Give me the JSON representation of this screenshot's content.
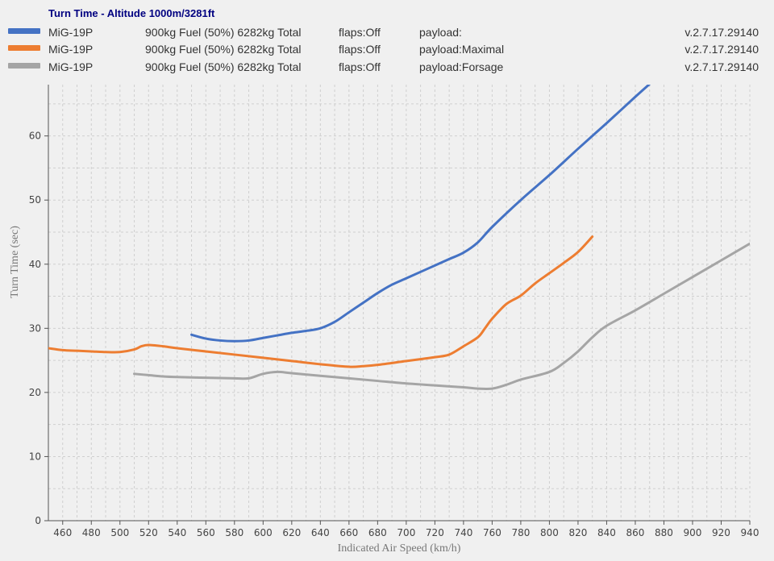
{
  "title": "Turn Time - Altitude 1000m/3281ft",
  "legend": [
    {
      "name": "MiG-19P",
      "fuel": "900kg Fuel (50%) 6282kg Total",
      "flaps": "flaps:Off",
      "payload": "payload:",
      "version": "v.2.7.17.29140",
      "color": "#4472c4"
    },
    {
      "name": "MiG-19P",
      "fuel": "900kg Fuel (50%) 6282kg Total",
      "flaps": "flaps:Off",
      "payload": "payload:Maximal",
      "version": "v.2.7.17.29140",
      "color": "#ed7d31"
    },
    {
      "name": "MiG-19P",
      "fuel": "900kg Fuel (50%) 6282kg Total",
      "flaps": "flaps:Off",
      "payload": "payload:Forsage",
      "version": "v.2.7.17.29140",
      "color": "#a5a5a5"
    }
  ],
  "chart_data": {
    "type": "line",
    "title": "Turn Time - Altitude 1000m/3281ft",
    "xlabel": "Indicated Air Speed (km/h)",
    "ylabel": "Turn Time (sec)",
    "xlim": [
      450,
      940
    ],
    "ylim": [
      0,
      68
    ],
    "xticks": [
      460,
      480,
      500,
      520,
      540,
      560,
      580,
      600,
      620,
      640,
      660,
      680,
      700,
      720,
      740,
      760,
      780,
      800,
      820,
      840,
      860,
      880,
      900,
      920,
      940
    ],
    "yticks": [
      0,
      10,
      20,
      30,
      40,
      50,
      60
    ],
    "grid": true,
    "series": [
      {
        "name": "MiG-19P",
        "color": "#4472c4",
        "x": [
          550,
          560,
          570,
          580,
          590,
          600,
          610,
          620,
          630,
          640,
          650,
          660,
          670,
          680,
          690,
          700,
          710,
          720,
          730,
          740,
          750,
          760,
          780,
          800,
          820,
          840,
          860,
          870
        ],
        "y": [
          29.0,
          28.4,
          28.1,
          28.0,
          28.1,
          28.5,
          28.9,
          29.3,
          29.6,
          30.0,
          31.0,
          32.5,
          34.0,
          35.5,
          36.8,
          37.8,
          38.8,
          39.8,
          40.8,
          41.8,
          43.4,
          45.8,
          50.0,
          53.9,
          58.0,
          62.0,
          66.1,
          68.1
        ]
      },
      {
        "name": "MiG-19P",
        "color": "#ed7d31",
        "x": [
          450,
          460,
          470,
          480,
          490,
          500,
          510,
          515,
          520,
          530,
          540,
          560,
          580,
          600,
          620,
          640,
          660,
          670,
          680,
          700,
          720,
          730,
          740,
          750,
          755,
          760,
          770,
          780,
          790,
          800,
          810,
          820,
          830
        ],
        "y": [
          26.9,
          26.6,
          26.5,
          26.4,
          26.3,
          26.3,
          26.7,
          27.2,
          27.4,
          27.2,
          26.9,
          26.4,
          25.9,
          25.4,
          24.9,
          24.4,
          24.0,
          24.1,
          24.3,
          24.9,
          25.5,
          25.9,
          27.2,
          28.6,
          30.0,
          31.5,
          33.8,
          35.1,
          37.0,
          38.6,
          40.2,
          41.9,
          44.3
        ]
      },
      {
        "name": "MiG-19P",
        "color": "#a5a5a5",
        "x": [
          510,
          520,
          530,
          540,
          560,
          580,
          590,
          600,
          610,
          620,
          640,
          660,
          680,
          700,
          720,
          740,
          750,
          760,
          770,
          780,
          800,
          810,
          820,
          830,
          840,
          860,
          880,
          900,
          920,
          940
        ],
        "y": [
          22.9,
          22.7,
          22.5,
          22.4,
          22.3,
          22.2,
          22.2,
          22.9,
          23.2,
          23.0,
          22.6,
          22.2,
          21.8,
          21.4,
          21.1,
          20.8,
          20.6,
          20.6,
          21.2,
          22.0,
          23.2,
          24.6,
          26.4,
          28.6,
          30.4,
          32.8,
          35.4,
          38.0,
          40.6,
          43.2
        ]
      }
    ]
  }
}
